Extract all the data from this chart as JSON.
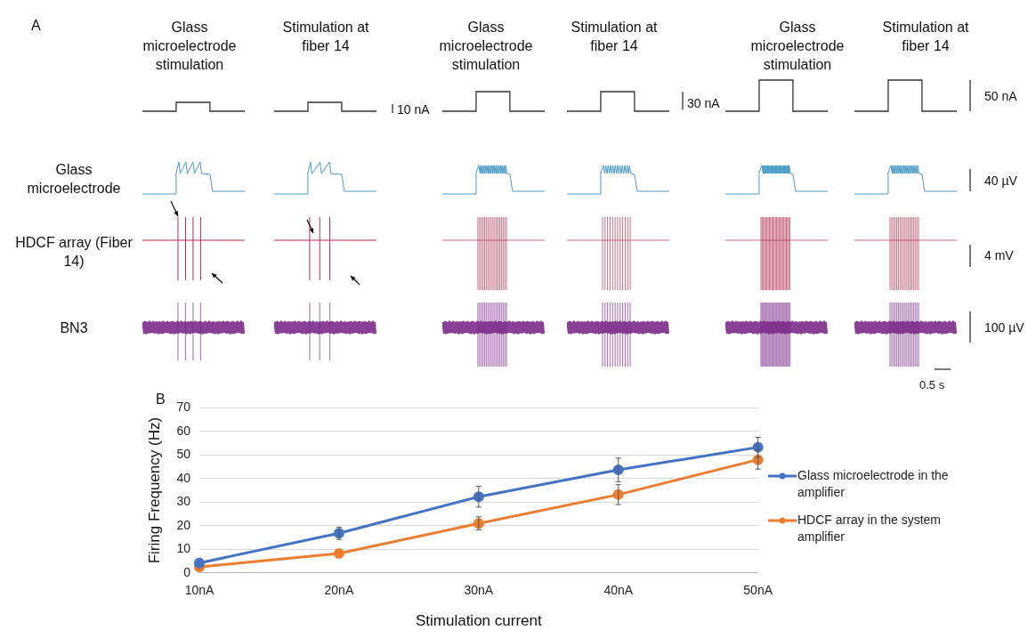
{
  "chart_data": [
    {
      "type": "other",
      "annotations": [
        "A",
        "Glass microelectrode stimulation",
        "Stimulation at fiber 14",
        "Glass microelectrode stimulation",
        "Stimulation at fiber 14",
        "Glass microelectrode stimulation",
        "Stimulation at fiber 14",
        "Glass microelectrode",
        "HDCF array (Fiber 14)",
        "BN3",
        "10 nA",
        "30 nA",
        "50 nA",
        "40 µV",
        "4 mV",
        "100 µV",
        "0.5 s"
      ]
    },
    {
      "type": "line",
      "xlabel": "Stimulation current",
      "ylabel": "Firing Frequency (Hz)",
      "categories": [
        "10nA",
        "20nA",
        "30nA",
        "40nA",
        "50nA"
      ],
      "series": [
        {
          "name": "Glass microelectrode in the amplifier",
          "color": "#4472c4",
          "values": [
            4.2,
            16.8,
            32.3,
            43.7,
            53.3
          ],
          "errors": [
            null,
            2.6,
            4.4,
            5,
            4.2
          ]
        },
        {
          "name": "HDCF array in the system amplifier",
          "color": "#ed7d31",
          "values": [
            2.5,
            8.2,
            21,
            33.2,
            48
          ],
          "errors": [
            null,
            null,
            2.8,
            4.2,
            4
          ]
        }
      ],
      "ylim": [
        0,
        70
      ],
      "yticks": [
        0,
        10,
        20,
        30,
        40,
        50,
        60,
        70
      ],
      "grid": "y",
      "legend": "right",
      "marker": "circle",
      "annotations": [
        "B"
      ]
    }
  ]
}
